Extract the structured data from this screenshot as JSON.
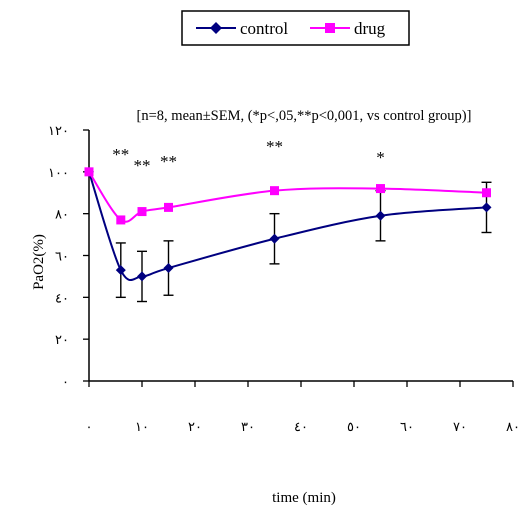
{
  "chart_data": {
    "type": "line",
    "title": "",
    "subtitle": "[n=8, mean±SEM, (*p<,05,**p<0,001, vs control group)]",
    "xlabel": "time (min)",
    "ylabel": "PaO2(%)",
    "xlim": [
      0,
      80
    ],
    "ylim": [
      0,
      120
    ],
    "x_ticks": [
      0,
      10,
      20,
      30,
      40,
      50,
      60,
      70,
      80
    ],
    "x_tick_labels": [
      "٠",
      "١٠",
      "٢٠",
      "٣٠",
      "٤٠",
      "٥٠",
      "٦٠",
      "٧٠",
      "٨٠"
    ],
    "y_ticks": [
      0,
      20,
      40,
      60,
      80,
      100,
      120
    ],
    "y_tick_labels": [
      "٠",
      "٢٠",
      "٤٠",
      "٦٠",
      "٨٠",
      "١٠٠",
      "١٢٠"
    ],
    "grid": false,
    "legend_position": "top-center",
    "series": [
      {
        "name": "control",
        "color": "#000080",
        "marker": "diamond",
        "x": [
          0,
          6,
          10,
          15,
          35,
          55,
          75
        ],
        "y": [
          100,
          53,
          50,
          54,
          68,
          79,
          83
        ],
        "err": [
          0,
          13,
          12,
          13,
          12,
          12,
          12
        ]
      },
      {
        "name": "drug",
        "color": "#ff00ff",
        "marker": "square",
        "x": [
          0,
          6,
          10,
          15,
          35,
          55,
          75
        ],
        "y": [
          100,
          77,
          81,
          83,
          91,
          92,
          90
        ],
        "err": [
          0,
          0,
          0,
          0,
          0,
          0,
          0
        ]
      }
    ],
    "annotations": [
      {
        "x": 6,
        "text": "**"
      },
      {
        "x": 10,
        "text": "**"
      },
      {
        "x": 15,
        "text": "**"
      },
      {
        "x": 35,
        "text": "**"
      },
      {
        "x": 55,
        "text": "*"
      }
    ]
  }
}
